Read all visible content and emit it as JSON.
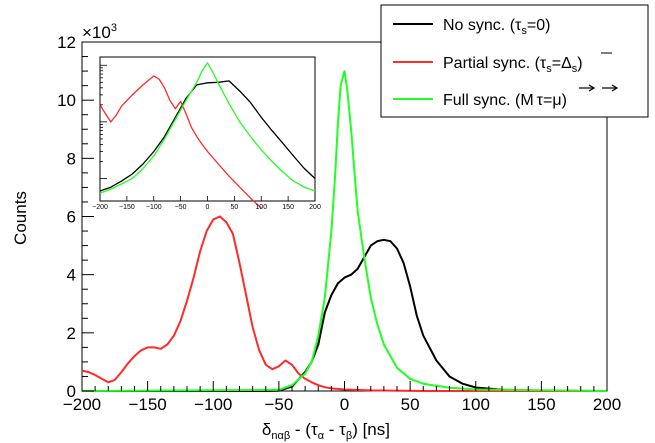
{
  "chart_data": {
    "type": "line",
    "title": "",
    "xlabel": "δnαβ - (τα - τβ) [ns]",
    "xlabel_parts": {
      "delta": "δ",
      "delta_sub": "nαβ",
      "mid": " - (τ",
      "alpha_sub": "α",
      "dash": " - τ",
      "beta_sub": "β",
      "end": ")  [ns]"
    },
    "ylabel": "Counts",
    "y_multiplier_label": "×10",
    "y_multiplier_exp": "3",
    "xlim": [
      -200,
      200
    ],
    "ylim": [
      0,
      12000
    ],
    "xticks": [
      -200,
      -150,
      -100,
      -50,
      0,
      50,
      100,
      150,
      200
    ],
    "xtick_labels": [
      "−200",
      "−150",
      "−100",
      "−50",
      "0",
      "50",
      "100",
      "150",
      "200"
    ],
    "yticks": [
      0,
      2000,
      4000,
      6000,
      8000,
      10000,
      12000
    ],
    "ytick_labels": [
      "0",
      "2",
      "4",
      "6",
      "8",
      "10",
      "12"
    ],
    "legend_position": "top-right",
    "series": [
      {
        "name": "No sync. (τs=0)",
        "color": "#000000",
        "x": [
          -200,
          -60,
          -50,
          -40,
          -30,
          -25,
          -20,
          -15,
          -10,
          -5,
          0,
          5,
          10,
          15,
          20,
          25,
          30,
          35,
          40,
          45,
          50,
          55,
          60,
          70,
          80,
          90,
          100,
          120,
          150,
          200
        ],
        "y": [
          0,
          0,
          10,
          150,
          650,
          1000,
          1600,
          2700,
          3300,
          3700,
          3900,
          4000,
          4200,
          4600,
          5000,
          5150,
          5200,
          5150,
          4900,
          4400,
          3600,
          2600,
          1900,
          1050,
          500,
          250,
          120,
          40,
          10,
          0
        ]
      },
      {
        "name": "Partial sync.",
        "color": "#ff2a2a",
        "x": [
          -200,
          -195,
          -190,
          -185,
          -180,
          -175,
          -170,
          -165,
          -160,
          -155,
          -150,
          -145,
          -140,
          -135,
          -130,
          -125,
          -120,
          -115,
          -110,
          -105,
          -100,
          -95,
          -90,
          -85,
          -80,
          -75,
          -70,
          -65,
          -60,
          -55,
          -50,
          -45,
          -40,
          -35,
          -30,
          -25,
          -20,
          -15,
          -10,
          0,
          20,
          60,
          200
        ],
        "y": [
          700,
          650,
          550,
          420,
          300,
          380,
          650,
          950,
          1200,
          1400,
          1500,
          1500,
          1450,
          1600,
          1900,
          2400,
          3100,
          3900,
          4800,
          5500,
          5900,
          6000,
          5800,
          5400,
          4400,
          3300,
          2200,
          1400,
          900,
          750,
          850,
          1050,
          900,
          600,
          420,
          300,
          200,
          130,
          90,
          50,
          20,
          0,
          0
        ]
      },
      {
        "name": "Full sync.",
        "color": "#22ff22",
        "x": [
          -200,
          -50,
          -40,
          -30,
          -25,
          -20,
          -15,
          -10,
          -7,
          -5,
          -3,
          0,
          2,
          5,
          8,
          10,
          15,
          20,
          25,
          30,
          40,
          50,
          60,
          80,
          100,
          200
        ],
        "y": [
          0,
          40,
          200,
          600,
          1000,
          1900,
          3200,
          5500,
          7500,
          9200,
          10500,
          11000,
          10400,
          9000,
          7300,
          6200,
          4600,
          3200,
          2300,
          1600,
          800,
          420,
          250,
          110,
          50,
          0
        ]
      }
    ],
    "legend": [
      {
        "label": "No sync. (τs=0)",
        "color": "#000000"
      },
      {
        "label": "Partial sync. (τs=Δs)",
        "color": "#ff2a2a"
      },
      {
        "label": "Full sync. (M τ=μ)",
        "color": "#22ff22"
      }
    ],
    "legend_parts": {
      "entry0": {
        "pre": "No sync. (τ",
        "sub": "s",
        "post": "=0)"
      },
      "entry1": {
        "pre": "Partial sync. (τ",
        "sub": "s",
        "mid": "=Δ",
        "sub2": "s",
        "post": ")"
      },
      "entry2": {
        "pre": "Full sync. (M",
        "tau": "τ",
        "eq": "=",
        "mu": "μ",
        "post": ")"
      }
    },
    "inset": {
      "type": "line",
      "yscale": "log",
      "xlim": [
        -200,
        200
      ],
      "xticks": [
        -200,
        -150,
        -100,
        -50,
        0,
        50,
        100,
        150,
        200
      ],
      "xtick_labels": [
        "−200",
        "−150",
        "−100",
        "−50",
        "0",
        "50",
        "100",
        "150",
        "200"
      ],
      "series": [
        {
          "name": "No sync. (τs=0)",
          "color": "#000000",
          "x": [
            -200,
            -180,
            -160,
            -140,
            -120,
            -100,
            -80,
            -60,
            -40,
            -20,
            0,
            20,
            40,
            60,
            80,
            100,
            120,
            140,
            160,
            180,
            200
          ],
          "y": [
            0.06,
            0.07,
            0.09,
            0.12,
            0.18,
            0.3,
            0.55,
            1.2,
            2.6,
            4.5,
            4.9,
            5.0,
            5.3,
            3.5,
            2.2,
            1.2,
            0.7,
            0.42,
            0.25,
            0.15,
            0.1
          ]
        },
        {
          "name": "Partial sync.",
          "color": "#ff2a2a",
          "x": [
            -200,
            -190,
            -180,
            -170,
            -160,
            -140,
            -120,
            -100,
            -90,
            -80,
            -70,
            -60,
            -50,
            -40,
            -30,
            -20,
            -10,
            0,
            20,
            40,
            60,
            80,
            100
          ],
          "y": [
            2.0,
            1.4,
            1.0,
            1.3,
            1.9,
            3.0,
            4.5,
            6.5,
            5.7,
            4.0,
            2.4,
            1.7,
            2.3,
            1.4,
            0.8,
            0.55,
            0.4,
            0.3,
            0.18,
            0.11,
            0.07,
            0.045,
            0.03
          ]
        },
        {
          "name": "Full sync.",
          "color": "#22ff22",
          "x": [
            -200,
            -180,
            -160,
            -140,
            -120,
            -100,
            -80,
            -60,
            -40,
            -20,
            -10,
            0,
            10,
            20,
            40,
            60,
            80,
            100,
            120,
            140,
            160,
            180,
            200
          ],
          "y": [
            0.055,
            0.065,
            0.08,
            0.1,
            0.15,
            0.25,
            0.5,
            1.1,
            2.4,
            5.0,
            8.0,
            11.0,
            7.5,
            4.8,
            2.1,
            1.0,
            0.55,
            0.32,
            0.2,
            0.13,
            0.09,
            0.07,
            0.06
          ]
        }
      ]
    }
  }
}
